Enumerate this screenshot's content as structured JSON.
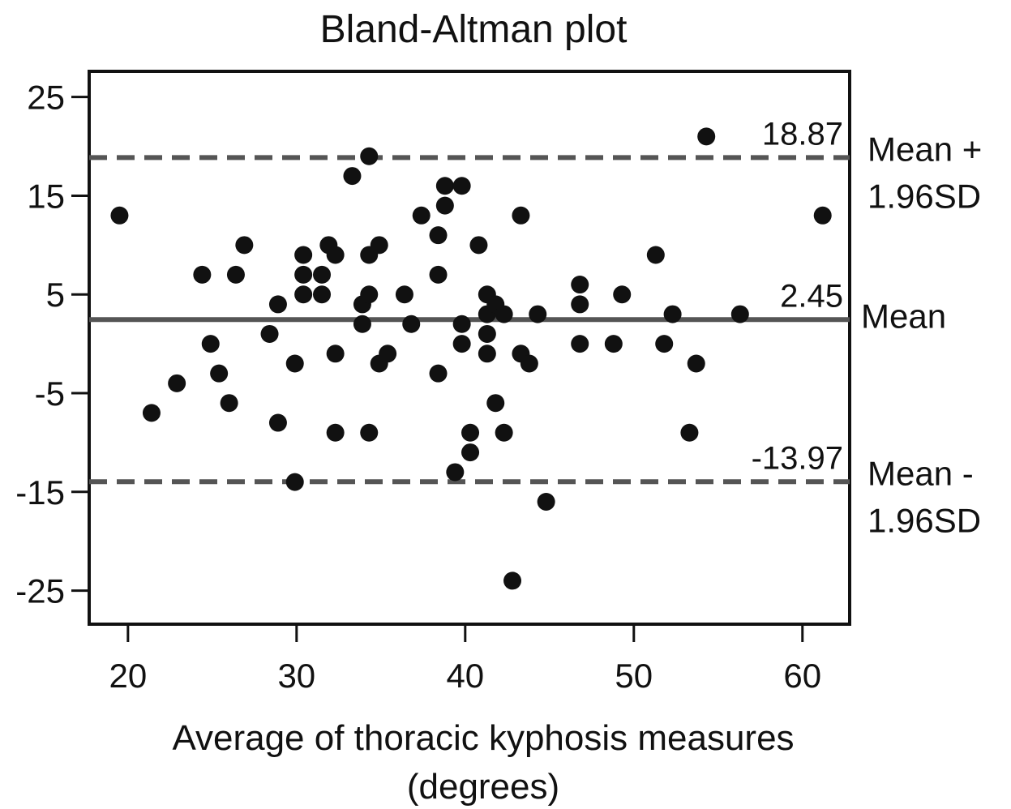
{
  "chart_data": {
    "type": "scatter",
    "title": "Bland-Altman plot",
    "xlabel_line1": "Average of thoracic kyphosis measures",
    "xlabel_line2": "(degrees)",
    "ylabel": "",
    "xlim": [
      17.7,
      62.8
    ],
    "ylim": [
      -28.4,
      27.6
    ],
    "xticks": [
      20,
      30,
      40,
      50,
      60
    ],
    "yticks": [
      25,
      15,
      5,
      -5,
      -15,
      -25
    ],
    "grid": false,
    "reference_lines": [
      {
        "value": 18.87,
        "value_label": "18.87",
        "label_line1": "Mean +",
        "label_line2": "1.96SD",
        "style": "dashed"
      },
      {
        "value": 2.45,
        "value_label": "2.45",
        "label_line1": "Mean",
        "label_line2": "",
        "style": "solid"
      },
      {
        "value": -13.97,
        "value_label": "-13.97",
        "label_line1": "Mean -",
        "label_line2": "1.96SD",
        "style": "dashed"
      }
    ],
    "colors": {
      "points": "#111111",
      "lines": "#555555",
      "axes": "#111111"
    },
    "points": [
      [
        19.5,
        13
      ],
      [
        21.4,
        -7
      ],
      [
        22.9,
        -4
      ],
      [
        24.4,
        7
      ],
      [
        24.9,
        0
      ],
      [
        25.4,
        -3
      ],
      [
        26.0,
        -6
      ],
      [
        26.4,
        7
      ],
      [
        26.9,
        10
      ],
      [
        28.4,
        1
      ],
      [
        28.9,
        4
      ],
      [
        28.9,
        -8
      ],
      [
        29.9,
        -2
      ],
      [
        29.9,
        -14
      ],
      [
        30.4,
        9
      ],
      [
        30.4,
        7
      ],
      [
        30.4,
        5
      ],
      [
        31.5,
        7
      ],
      [
        31.5,
        5
      ],
      [
        31.9,
        10
      ],
      [
        32.3,
        9
      ],
      [
        32.3,
        -1
      ],
      [
        32.3,
        -9
      ],
      [
        33.3,
        17
      ],
      [
        33.9,
        4
      ],
      [
        33.9,
        2
      ],
      [
        34.3,
        19
      ],
      [
        34.3,
        9
      ],
      [
        34.3,
        5
      ],
      [
        34.3,
        -9
      ],
      [
        34.9,
        10
      ],
      [
        34.9,
        -2
      ],
      [
        35.4,
        -1
      ],
      [
        36.4,
        5
      ],
      [
        36.8,
        2
      ],
      [
        37.4,
        13
      ],
      [
        38.4,
        11
      ],
      [
        38.4,
        7
      ],
      [
        38.4,
        -3
      ],
      [
        38.8,
        16
      ],
      [
        38.8,
        14
      ],
      [
        39.4,
        -13
      ],
      [
        39.8,
        16
      ],
      [
        39.8,
        2
      ],
      [
        39.8,
        0
      ],
      [
        40.3,
        -9
      ],
      [
        40.3,
        -11
      ],
      [
        40.8,
        10
      ],
      [
        41.3,
        5
      ],
      [
        41.3,
        3
      ],
      [
        41.3,
        1
      ],
      [
        41.3,
        -1
      ],
      [
        41.8,
        4
      ],
      [
        41.8,
        -6
      ],
      [
        42.3,
        3
      ],
      [
        42.3,
        -9
      ],
      [
        42.8,
        -24
      ],
      [
        43.3,
        13
      ],
      [
        43.3,
        -1
      ],
      [
        43.8,
        -2
      ],
      [
        44.3,
        3
      ],
      [
        44.8,
        -16
      ],
      [
        46.8,
        6
      ],
      [
        46.8,
        4
      ],
      [
        46.8,
        0
      ],
      [
        48.8,
        0
      ],
      [
        49.3,
        5
      ],
      [
        51.3,
        9
      ],
      [
        51.8,
        0
      ],
      [
        52.3,
        3
      ],
      [
        53.3,
        -9
      ],
      [
        53.7,
        -2
      ],
      [
        54.3,
        21
      ],
      [
        56.3,
        3
      ],
      [
        61.2,
        13
      ]
    ]
  }
}
